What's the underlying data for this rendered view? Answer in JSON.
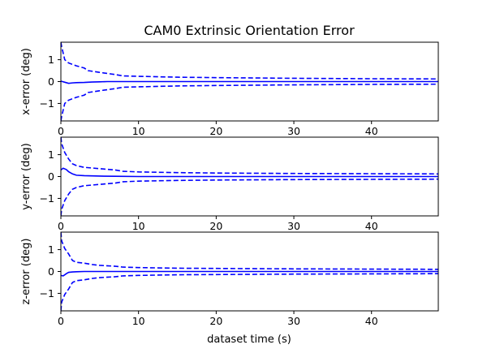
{
  "chart_data": {
    "title": "CAM0 Extrinsic Orientation Error",
    "xlabel": "dataset time (s)",
    "type": "line",
    "xlim": [
      0,
      48.6
    ],
    "colors": {
      "series": "#0000ff"
    },
    "subplots": [
      {
        "ylabel": "x-error (deg)",
        "ylim": [
          -1.8,
          1.8
        ],
        "yticks": [
          1,
          0,
          -1
        ],
        "xticks": [
          0,
          10,
          20,
          30,
          40
        ],
        "show_xtick_labels": true,
        "series": [
          {
            "style": "solid",
            "x": [
              0,
              0.5,
              1,
              1.5,
              2,
              3,
              4,
              5,
              6,
              7,
              8,
              10,
              15,
              20,
              30,
              40,
              48.6
            ],
            "y": [
              0.02,
              -0.03,
              -0.08,
              -0.06,
              -0.05,
              -0.04,
              -0.02,
              -0.01,
              0,
              0,
              0,
              0,
              0,
              0,
              0,
              0,
              0
            ]
          },
          {
            "style": "dashed",
            "x": [
              0,
              0.1,
              0.5,
              1,
              2,
              3,
              3.5,
              5,
              7,
              8,
              10,
              15,
              20,
              30,
              40,
              48.6
            ],
            "y": [
              1.8,
              1.6,
              1.0,
              0.85,
              0.72,
              0.62,
              0.5,
              0.42,
              0.32,
              0.26,
              0.24,
              0.2,
              0.18,
              0.15,
              0.13,
              0.12
            ]
          },
          {
            "style": "dashed",
            "x": [
              0,
              0.1,
              0.5,
              1,
              2,
              3,
              3.5,
              5,
              7,
              8,
              10,
              15,
              20,
              30,
              40,
              48.6
            ],
            "y": [
              -1.8,
              -1.6,
              -1.0,
              -0.85,
              -0.72,
              -0.62,
              -0.5,
              -0.42,
              -0.32,
              -0.26,
              -0.24,
              -0.2,
              -0.18,
              -0.15,
              -0.13,
              -0.12
            ]
          }
        ]
      },
      {
        "ylabel": "y-error (deg)",
        "ylim": [
          -1.8,
          1.8
        ],
        "yticks": [
          1,
          0,
          -1
        ],
        "xticks": [
          0,
          10,
          20,
          30,
          40
        ],
        "show_xtick_labels": true,
        "series": [
          {
            "style": "solid",
            "x": [
              0,
              0.3,
              0.7,
              1,
              1.5,
              2,
              3,
              5,
              7,
              10,
              20,
              30,
              40,
              48.6
            ],
            "y": [
              0.3,
              0.38,
              0.32,
              0.22,
              0.12,
              0.06,
              0.04,
              0.02,
              0.01,
              0,
              0,
              0,
              0,
              0
            ]
          },
          {
            "style": "dashed",
            "x": [
              0,
              0.1,
              0.5,
              1,
              1.5,
              2,
              3,
              5,
              7,
              8,
              10,
              15,
              20,
              30,
              40,
              48.6
            ],
            "y": [
              1.8,
              1.5,
              1.1,
              0.8,
              0.58,
              0.5,
              0.42,
              0.36,
              0.3,
              0.24,
              0.21,
              0.18,
              0.16,
              0.14,
              0.13,
              0.12
            ]
          },
          {
            "style": "dashed",
            "x": [
              0,
              0.1,
              0.5,
              1,
              1.5,
              2,
              3,
              5,
              7,
              8,
              10,
              15,
              20,
              30,
              40,
              48.6
            ],
            "y": [
              -1.8,
              -1.5,
              -1.1,
              -0.8,
              -0.58,
              -0.5,
              -0.42,
              -0.36,
              -0.3,
              -0.24,
              -0.21,
              -0.18,
              -0.16,
              -0.14,
              -0.13,
              -0.12
            ]
          }
        ]
      },
      {
        "ylabel": "z-error (deg)",
        "ylim": [
          -1.8,
          1.8
        ],
        "yticks": [
          1,
          0,
          -1
        ],
        "xticks": [
          0,
          10,
          20,
          30,
          40
        ],
        "show_xtick_labels": true,
        "series": [
          {
            "style": "solid",
            "x": [
              0,
              0.3,
              0.7,
              1,
              1.5,
              2,
              3,
              5,
              7,
              10,
              20,
              30,
              40,
              48.6
            ],
            "y": [
              -0.18,
              -0.2,
              -0.1,
              -0.04,
              -0.02,
              -0.01,
              0,
              0,
              0,
              0,
              0,
              0,
              0,
              0
            ]
          },
          {
            "style": "dashed",
            "x": [
              0,
              0.1,
              0.5,
              1,
              1.5,
              2,
              3,
              4,
              5,
              7,
              8,
              10,
              15,
              20,
              30,
              40,
              48.6
            ],
            "y": [
              1.8,
              1.4,
              1.05,
              0.8,
              0.5,
              0.42,
              0.38,
              0.32,
              0.28,
              0.24,
              0.2,
              0.18,
              0.15,
              0.14,
              0.12,
              0.11,
              0.1
            ]
          },
          {
            "style": "dashed",
            "x": [
              0,
              0.1,
              0.5,
              1,
              1.5,
              2,
              3,
              4,
              5,
              7,
              8,
              10,
              15,
              20,
              30,
              40,
              48.6
            ],
            "y": [
              -1.8,
              -1.4,
              -1.05,
              -0.8,
              -0.5,
              -0.42,
              -0.38,
              -0.32,
              -0.28,
              -0.24,
              -0.2,
              -0.18,
              -0.15,
              -0.14,
              -0.12,
              -0.11,
              -0.1
            ]
          }
        ]
      }
    ]
  }
}
